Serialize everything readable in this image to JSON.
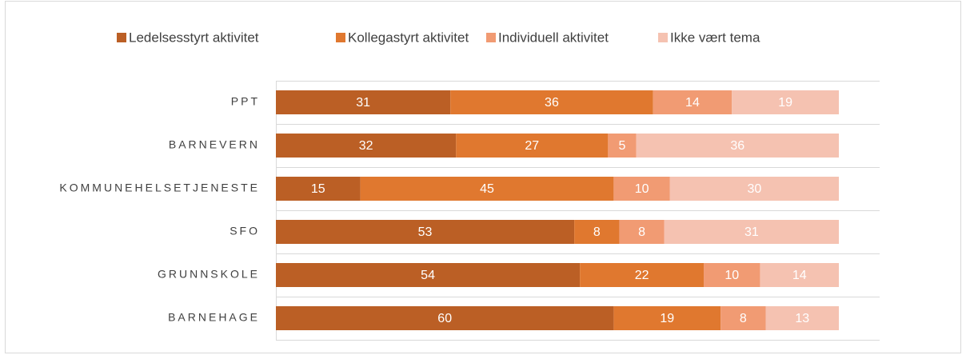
{
  "chart_data": {
    "type": "stacked_bar_horizontal",
    "categories": [
      "PPT",
      "BARNEVERN",
      "KOMMUNEHELSETJENESTE",
      "SFO",
      "GRUNNSKOLE",
      "BARNEHAGE"
    ],
    "series": [
      {
        "name": "Ledelsesstyrt aktivitet",
        "color": "#bb5f25",
        "values": [
          31,
          32,
          15,
          53,
          54,
          60
        ]
      },
      {
        "name": "Kollegastyrt aktivitet",
        "color": "#e0782f",
        "values": [
          36,
          27,
          45,
          8,
          22,
          19
        ]
      },
      {
        "name": "Individuell aktivitet",
        "color": "#f19b73",
        "values": [
          14,
          5,
          10,
          8,
          10,
          8
        ]
      },
      {
        "name": "Ikke vært tema",
        "color": "#f5c2b1",
        "values": [
          19,
          36,
          30,
          31,
          14,
          13
        ]
      }
    ],
    "xlim": [
      0,
      100
    ],
    "legend": "top"
  }
}
